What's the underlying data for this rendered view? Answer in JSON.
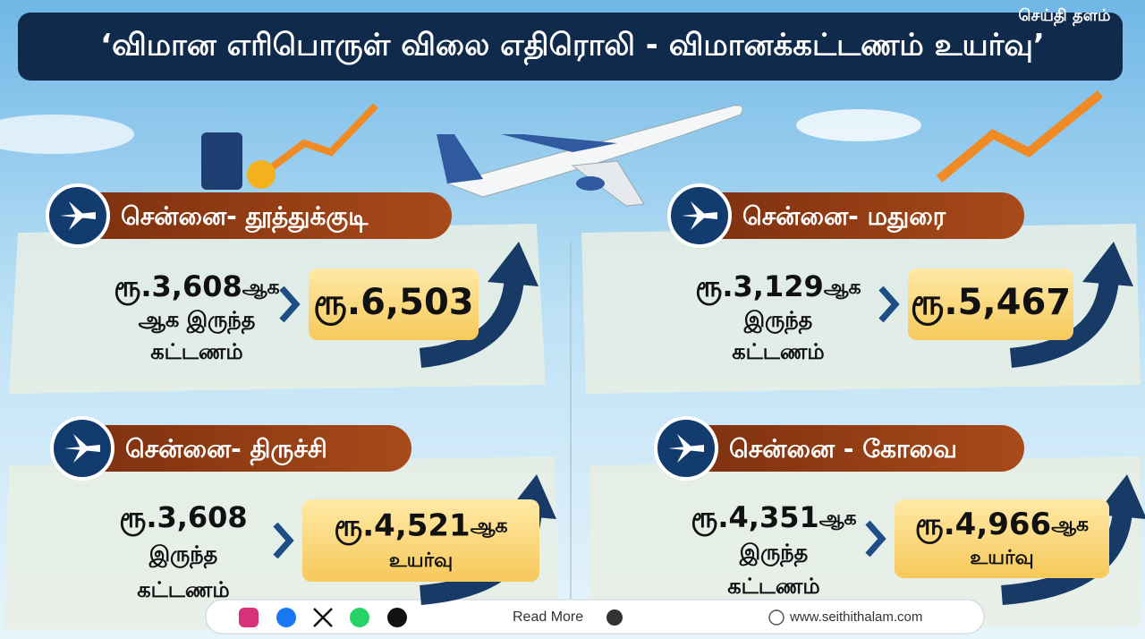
{
  "header": {
    "title": "‘விமான எரிபொருள் விலை எதிரொலி - விமானக்கட்டணம் உயர்வு’",
    "brand": "செய்தி தளம்"
  },
  "panels": [
    {
      "route": "சென்னை- தூத்துக்குடி",
      "old_amount": "ரூ.3,608",
      "old_suffix": "ஆக",
      "old_lines": [
        "ஆக இருந்த",
        "கட்டணம்"
      ],
      "new_amount": "ரூ.6,503"
    },
    {
      "route": "சென்னை- மதுரை",
      "old_amount": "ரூ.3,129",
      "old_suffix": "ஆக",
      "old_lines": [
        "இருந்த",
        "கட்டணம்"
      ],
      "new_amount": "ரூ.5,467"
    },
    {
      "route": "சென்னை- திருச்சி",
      "old_amount": "ரூ.3,608",
      "old_lines": [
        "இருந்த",
        "கட்டணம்"
      ],
      "new_amount": "ரூ.4,521",
      "new_suffix": "ஆக",
      "new_line": "உயர்வு"
    },
    {
      "route": "சென்னை - கோவை",
      "old_amount": "ரூ.4,351",
      "old_suffix": "ஆக",
      "old_lines": [
        "இருந்த",
        "கட்டணம்"
      ],
      "new_amount": "ரூ.4,966",
      "new_suffix": "ஆக",
      "new_line": "உயர்வு"
    }
  ],
  "footer": {
    "read_more": "Read More",
    "website": "www.seithithalam.com"
  }
}
